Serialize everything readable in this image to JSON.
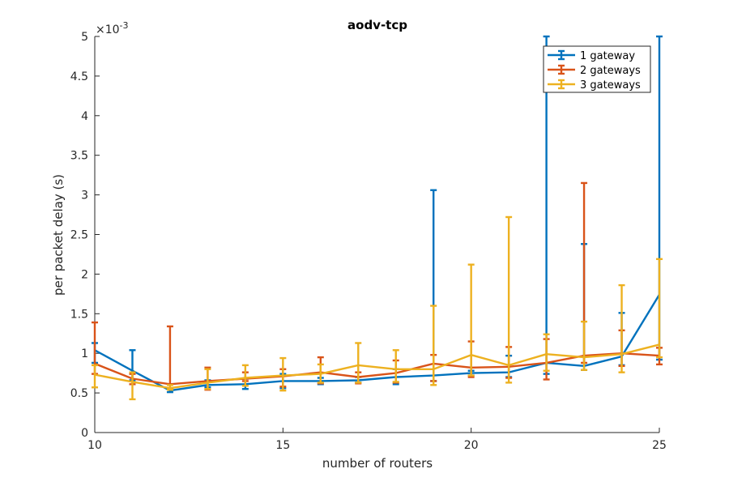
{
  "chart_data": {
    "type": "line",
    "title": "aodv-tcp",
    "xlabel": "number of routers",
    "ylabel": "per packet delay (s)",
    "y_exponent_label": "×10",
    "y_exponent_power": "-3",
    "xlim": [
      10,
      25
    ],
    "ylim": [
      0,
      5
    ],
    "x_ticks": [
      10,
      15,
      20,
      25
    ],
    "y_ticks": [
      0,
      0.5,
      1,
      1.5,
      2,
      2.5,
      3,
      3.5,
      4,
      4.5,
      5
    ],
    "y_tick_labels": [
      "0",
      "0.5",
      "1",
      "1.5",
      "2",
      "2.5",
      "3",
      "3.5",
      "4",
      "4.5",
      "5"
    ],
    "grid": false,
    "legend_position": "top-right",
    "x": [
      10,
      11,
      12,
      13,
      14,
      15,
      16,
      17,
      18,
      19,
      20,
      21,
      22,
      23,
      24,
      25
    ],
    "series": [
      {
        "name": "1 gateway",
        "color": "#0072BD",
        "values": [
          1.04,
          0.78,
          0.53,
          0.6,
          0.61,
          0.65,
          0.65,
          0.66,
          0.7,
          0.72,
          0.75,
          0.76,
          0.88,
          0.84,
          0.96,
          1.74
        ],
        "lower": [
          0.88,
          0.66,
          0.51,
          0.57,
          0.55,
          0.56,
          0.61,
          0.63,
          0.61,
          0.65,
          0.72,
          0.7,
          0.74,
          0.79,
          0.85,
          0.92
        ],
        "upper": [
          1.13,
          1.04,
          0.56,
          0.66,
          0.68,
          0.74,
          0.69,
          0.7,
          0.8,
          3.06,
          0.78,
          0.97,
          5.0,
          2.38,
          1.51,
          5.0
        ]
      },
      {
        "name": "2 gateways",
        "color": "#D95319",
        "values": [
          0.87,
          0.68,
          0.61,
          0.65,
          0.68,
          0.71,
          0.76,
          0.7,
          0.75,
          0.87,
          0.82,
          0.83,
          0.88,
          0.97,
          1.0,
          0.97
        ],
        "lower": [
          0.74,
          0.61,
          0.55,
          0.54,
          0.65,
          0.58,
          0.62,
          0.62,
          0.63,
          0.65,
          0.7,
          0.69,
          0.67,
          0.88,
          0.84,
          0.86
        ],
        "upper": [
          1.39,
          0.74,
          1.34,
          0.82,
          0.76,
          0.8,
          0.95,
          0.76,
          0.91,
          0.98,
          1.15,
          1.08,
          1.18,
          3.15,
          1.29,
          1.07
        ]
      },
      {
        "name": "3 gateways",
        "color": "#EDB120",
        "values": [
          0.73,
          0.64,
          0.56,
          0.63,
          0.69,
          0.72,
          0.74,
          0.85,
          0.8,
          0.8,
          0.98,
          0.85,
          0.99,
          0.95,
          0.99,
          1.11
        ],
        "lower": [
          0.57,
          0.42,
          0.54,
          0.55,
          0.59,
          0.53,
          0.63,
          0.63,
          0.64,
          0.6,
          0.72,
          0.63,
          0.78,
          0.79,
          0.76,
          0.95
        ],
        "upper": [
          0.85,
          0.76,
          0.6,
          0.8,
          0.85,
          0.94,
          0.86,
          1.13,
          1.04,
          1.6,
          2.12,
          2.72,
          1.24,
          1.4,
          1.86,
          2.19
        ]
      }
    ]
  }
}
